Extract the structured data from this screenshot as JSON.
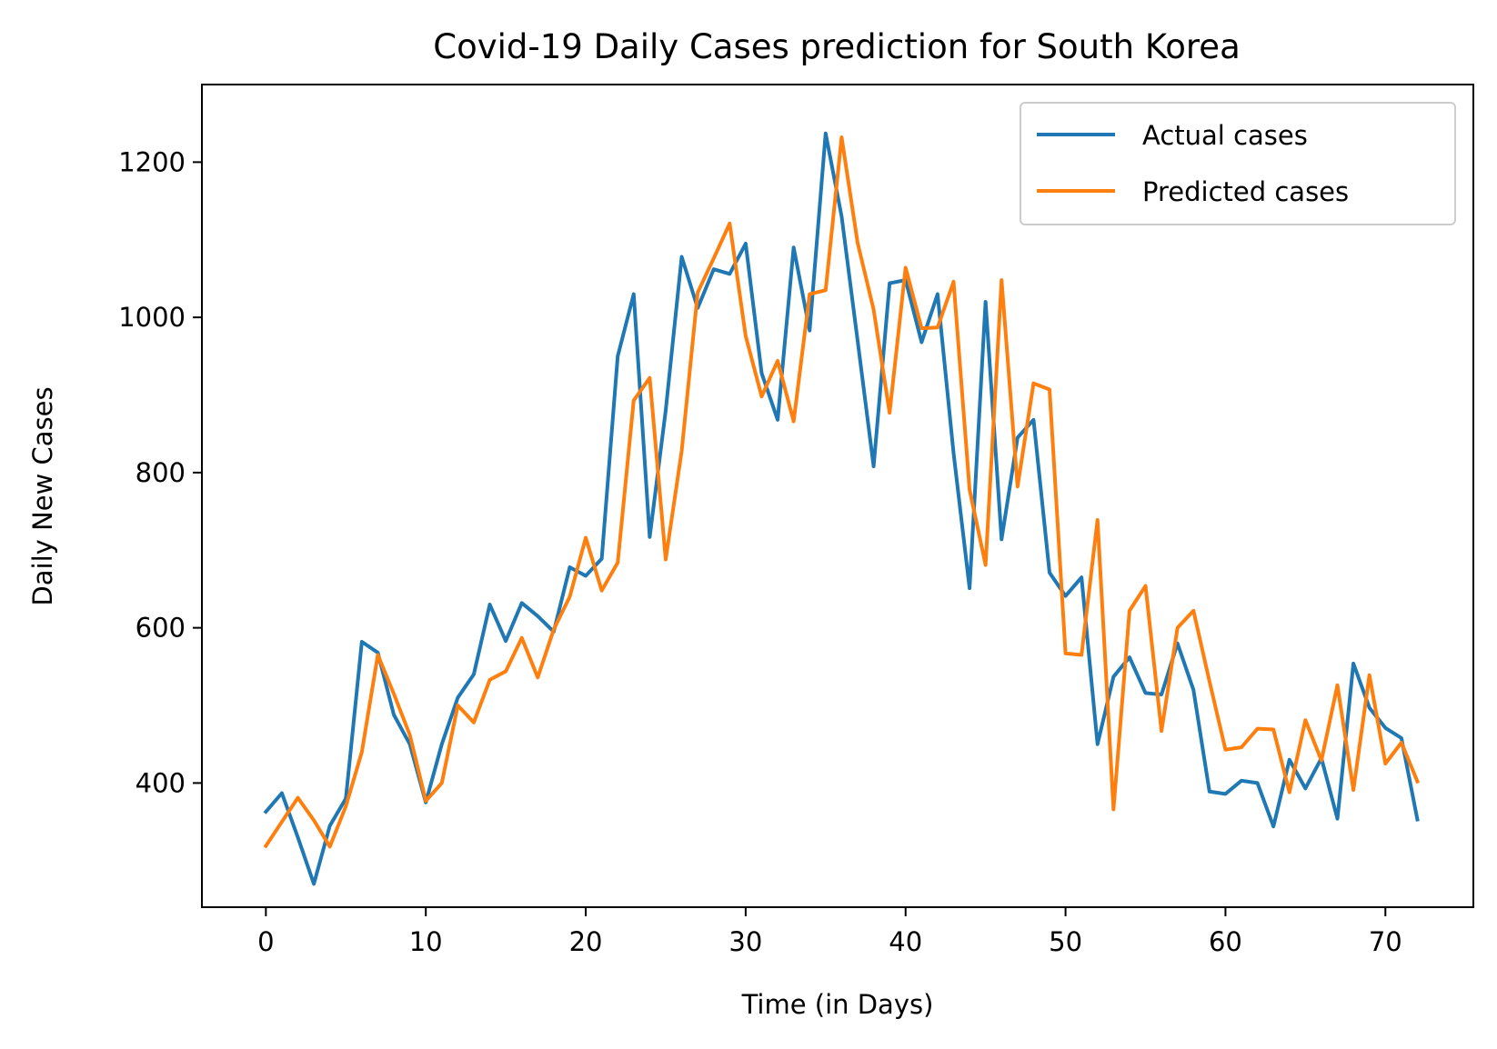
{
  "chart_data": {
    "type": "line",
    "title": "Covid-19 Daily Cases prediction for South Korea",
    "xlabel": "Time (in Days)",
    "ylabel": "Daily New Cases",
    "xlim": [
      -4,
      75.5
    ],
    "ylim": [
      240,
      1300
    ],
    "xticks": [
      0,
      10,
      20,
      30,
      40,
      50,
      60,
      70
    ],
    "yticks": [
      400,
      600,
      800,
      1000,
      1200
    ],
    "grid": false,
    "legend_position": "top-right",
    "series": [
      {
        "name": "Actual cases",
        "color": "#1f77b4",
        "x": [
          0,
          1,
          2,
          3,
          4,
          5,
          6,
          7,
          8,
          9,
          10,
          11,
          12,
          13,
          14,
          15,
          16,
          17,
          18,
          19,
          20,
          21,
          22,
          23,
          24,
          25,
          26,
          27,
          28,
          29,
          30,
          31,
          32,
          33,
          34,
          35,
          36,
          37,
          38,
          39,
          40,
          41,
          42,
          43,
          44,
          45,
          46,
          47,
          48,
          49,
          50,
          51,
          52,
          53,
          54,
          55,
          56,
          57,
          58,
          59,
          60,
          61,
          62,
          63,
          64,
          65,
          66,
          67,
          68,
          69,
          70,
          71,
          72
        ],
        "values": [
          363,
          387,
          330,
          270,
          345,
          380,
          582,
          568,
          488,
          450,
          375,
          450,
          510,
          540,
          630,
          583,
          632,
          615,
          595,
          678,
          667,
          689,
          950,
          1030,
          717,
          880,
          1078,
          1012,
          1062,
          1056,
          1095,
          928,
          868,
          1090,
          983,
          1237,
          1130,
          970,
          808,
          1044,
          1048,
          968,
          1030,
          825,
          651,
          1020,
          714,
          845,
          868,
          671,
          641,
          665,
          450,
          537,
          562,
          516,
          514,
          580,
          520,
          389,
          386,
          403,
          400,
          344,
          430,
          393,
          432,
          354,
          554,
          497,
          471,
          458,
          353
        ]
      },
      {
        "name": "Predicted cases",
        "color": "#ff7f0e",
        "x": [
          0,
          1,
          2,
          3,
          4,
          5,
          6,
          7,
          8,
          9,
          10,
          11,
          12,
          13,
          14,
          15,
          16,
          17,
          18,
          19,
          20,
          21,
          22,
          23,
          24,
          25,
          26,
          27,
          28,
          29,
          30,
          31,
          32,
          33,
          34,
          35,
          36,
          37,
          38,
          39,
          40,
          41,
          42,
          43,
          44,
          45,
          46,
          47,
          48,
          49,
          50,
          51,
          52,
          53,
          54,
          55,
          56,
          57,
          58,
          59,
          60,
          61,
          62,
          63,
          64,
          65,
          66,
          67,
          68,
          69,
          70,
          71,
          72
        ],
        "values": [
          319,
          350,
          381,
          352,
          318,
          370,
          440,
          565,
          515,
          462,
          377,
          400,
          500,
          478,
          533,
          544,
          587,
          536,
          598,
          640,
          716,
          648,
          684,
          893,
          922,
          688,
          828,
          1032,
          1076,
          1121,
          976,
          898,
          944,
          866,
          1030,
          1035,
          1232,
          1096,
          1010,
          877,
          1064,
          986,
          987,
          1046,
          778,
          681,
          1048,
          782,
          915,
          907,
          567,
          565,
          739,
          366,
          622,
          654,
          467,
          600,
          622,
          531,
          443,
          446,
          470,
          469,
          388,
          481,
          429,
          526,
          391,
          539,
          425,
          452,
          402
        ]
      }
    ]
  }
}
